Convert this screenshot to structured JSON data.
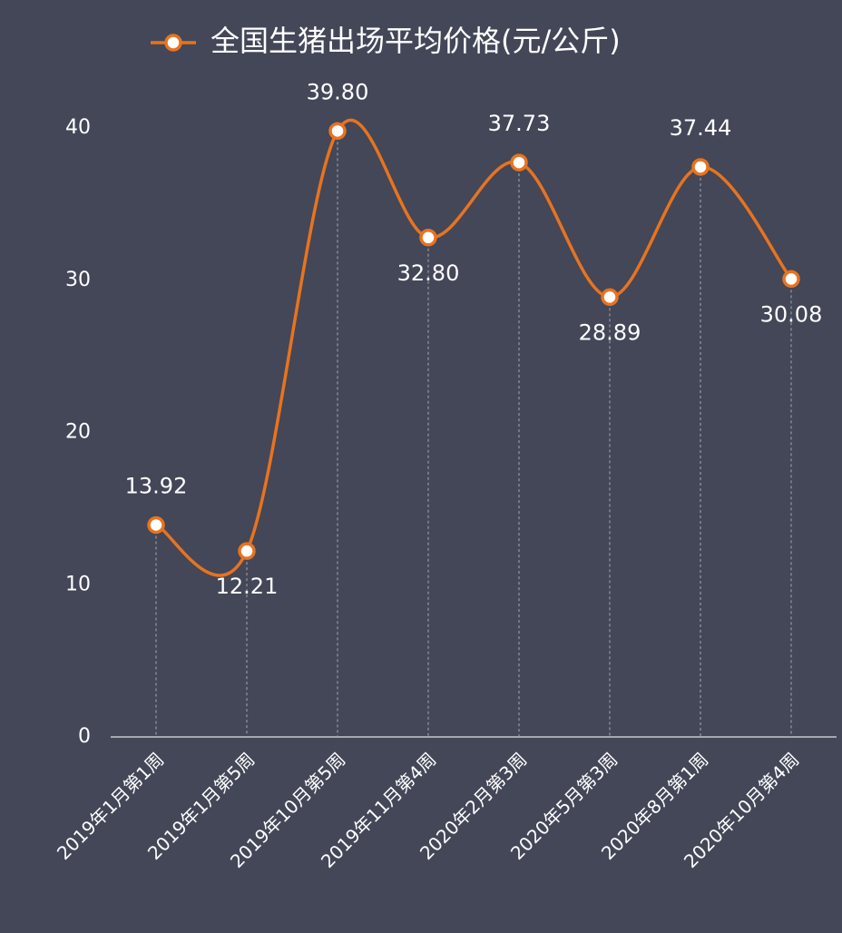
{
  "chart_data": {
    "type": "line",
    "categories": [
      "2019年1月第1周",
      "2019年1月第5周",
      "2019年10月第5周",
      "2019年11月第4周",
      "2020年2月第3周",
      "2020年5月第3周",
      "2020年8月第1周",
      "2020年10月第4周"
    ],
    "series": [
      {
        "name": "全国生猪出场平均价格(元/公斤)",
        "color": "#e8731f",
        "values": [
          13.92,
          12.21,
          39.8,
          32.8,
          37.73,
          28.89,
          37.44,
          30.08
        ],
        "value_labels": [
          "13.92",
          "12.21",
          "39.80",
          "32.80",
          "37.73",
          "28.89",
          "37.44",
          "30.08"
        ]
      }
    ],
    "ylim": [
      0,
      40
    ],
    "yticks": [
      0,
      10,
      20,
      30,
      40
    ],
    "smooth": true,
    "legend": "top"
  }
}
